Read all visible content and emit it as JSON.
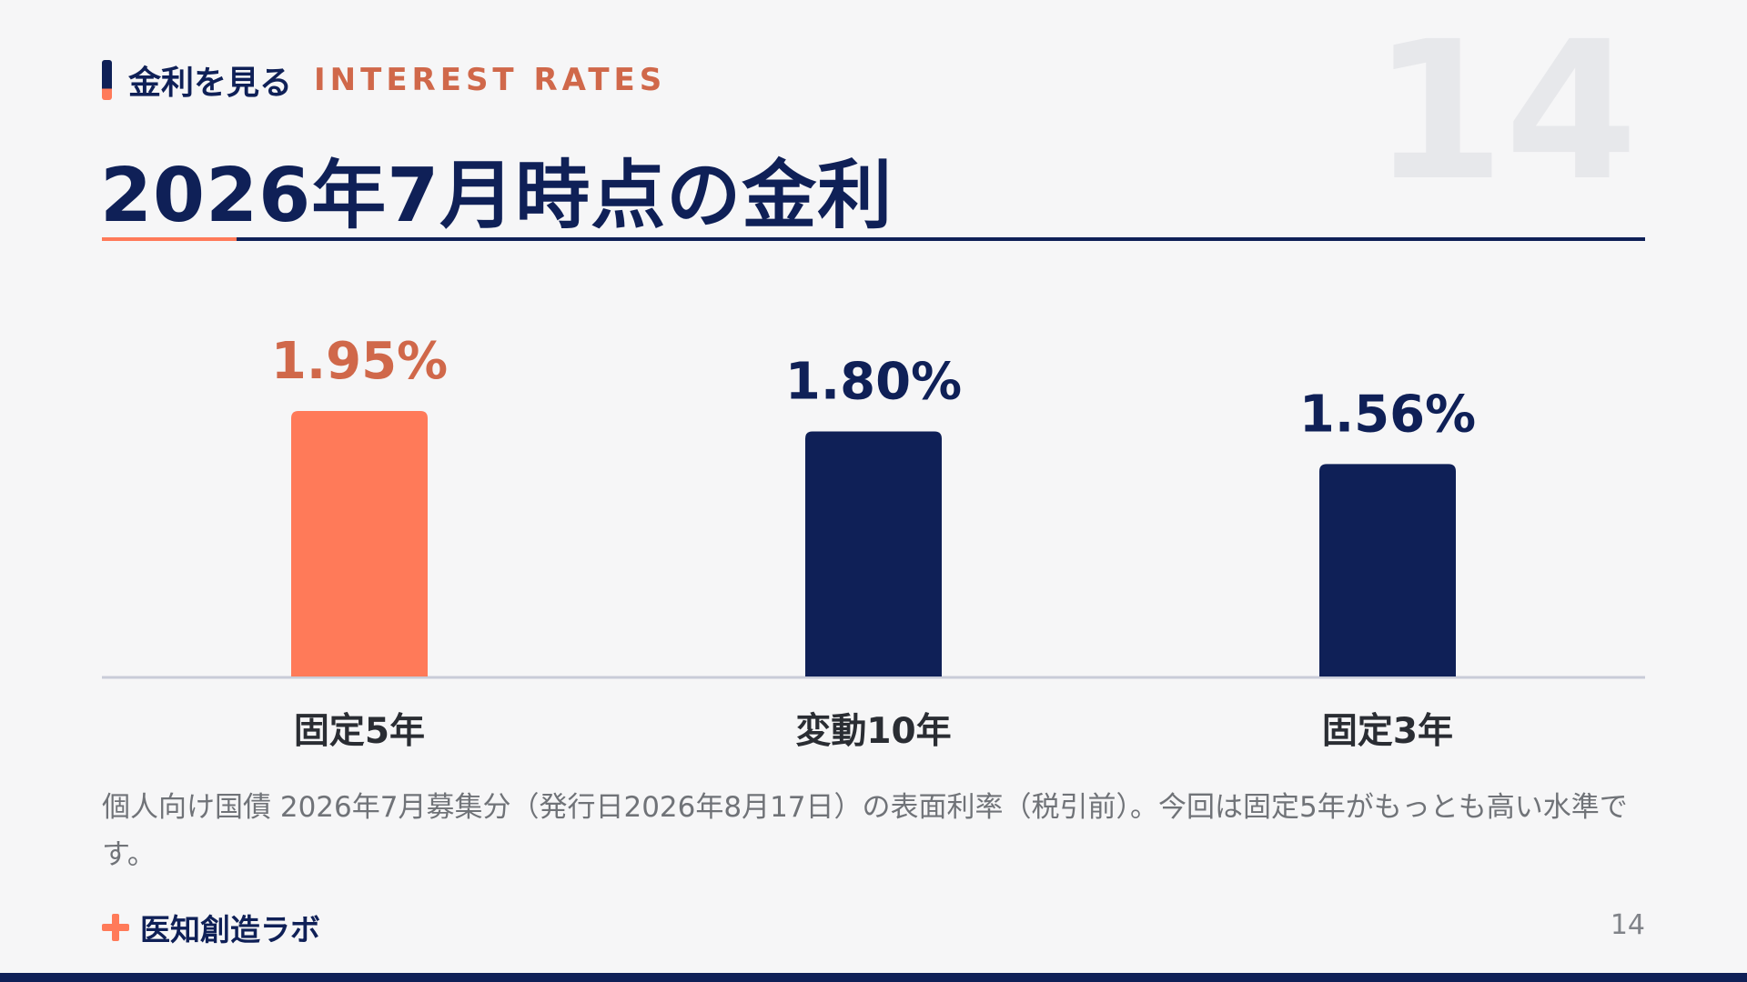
{
  "header": {
    "section_jp": "金利を見る",
    "section_en": "INTEREST RATES",
    "page_number_large": "14",
    "title": "2026年7月時点の金利"
  },
  "chart_data": {
    "type": "bar",
    "title": "",
    "xlabel": "",
    "ylabel": "",
    "categories": [
      "固定5年",
      "変動10年",
      "固定3年"
    ],
    "values": [
      1.95,
      1.8,
      1.56
    ],
    "data_labels": [
      "1.95%",
      "1.80%",
      "1.56%"
    ],
    "bar_colors": [
      "#ff7a59",
      "#0f2057",
      "#0f2057"
    ],
    "label_colors": [
      "#d0684a",
      "#0f2057",
      "#0f2057"
    ],
    "grid": false
  },
  "caption": "個人向け国債 2026年7月募集分（発行日2026年8月17日）の表面利率（税引前）。今回は固定5年がもっとも高い水準です。",
  "footer": {
    "brand": "医知創造ラボ",
    "page": "14"
  },
  "colors": {
    "navy": "#0f2057",
    "accent": "#ff7a59",
    "accent_text": "#d0684a",
    "background": "#f6f6f7"
  }
}
